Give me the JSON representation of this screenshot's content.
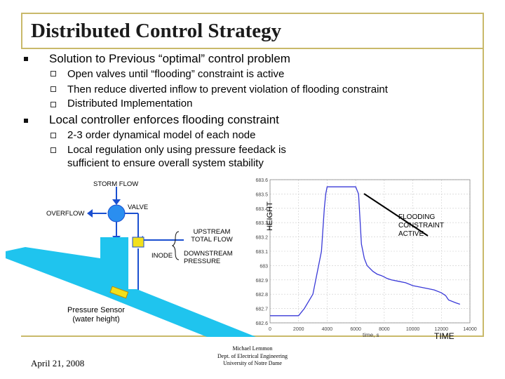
{
  "slide": {
    "title": "Distributed Control Strategy",
    "bullets": [
      {
        "text": "Solution to Previous “optimal” control problem",
        "sub": [
          "Open valves until “flooding” constraint is active",
          "Then reduce diverted inflow to prevent violation of flooding constraint",
          "Distributed Implementation"
        ]
      },
      {
        "text": "Local controller enforces flooding constraint",
        "sub": [
          "2-3 order dynamical model of each node",
          "Local regulation only using pressure feedack is sufficient to ensure overall system stability"
        ]
      }
    ]
  },
  "diagram": {
    "storm_flow": "STORM FLOW",
    "valve": "VALVE",
    "overflow": "OVERFLOW",
    "upstream": "UPSTREAM TOTAL FLOW",
    "inode": "INODE",
    "downstream": "DOWNSTREAM PRESSURE",
    "sensor": "Pressure Sensor (water height)",
    "colors": {
      "water": "#1fc4ee",
      "valve": "#2a8ef0",
      "node": "#f2e01c",
      "pipe": "#1a4fd0"
    }
  },
  "chart_data": {
    "type": "line",
    "xlabel": "time, s",
    "ylabel": "HEIGHT",
    "x_axis_caption": "TIME",
    "annotation": "FLOODING CONSTRAINT ACTIVE",
    "xlim": [
      0,
      14000
    ],
    "ylim": [
      682.6,
      683.6
    ],
    "xticks": [
      "0",
      "2000",
      "4000",
      "6000",
      "8000",
      "10000",
      "12000",
      "14000"
    ],
    "yticks": [
      "682.6",
      "682.7",
      "682.8",
      "682.9",
      "683",
      "683.1",
      "683.2",
      "683.3",
      "683.4",
      "683.5",
      "683.6"
    ],
    "grid": true,
    "color": "#3a3ad8",
    "series": [
      {
        "x": [
          0,
          2000,
          2400,
          3000,
          3600,
          3800,
          3900,
          4000,
          4200,
          4500,
          5000,
          5500,
          6000,
          6200,
          6400,
          6600,
          6800,
          7000,
          7200,
          7500,
          7800,
          8000,
          8200,
          8500,
          9000,
          9500,
          10000,
          10500,
          11000,
          11500,
          12000,
          12300,
          12500,
          13000,
          13300
        ],
        "y": [
          682.65,
          682.65,
          682.7,
          682.8,
          683.1,
          683.4,
          683.5,
          683.55,
          683.55,
          683.55,
          683.55,
          683.55,
          683.55,
          683.5,
          683.15,
          683.05,
          683.0,
          682.98,
          682.96,
          682.94,
          682.93,
          682.92,
          682.91,
          682.9,
          682.89,
          682.88,
          682.86,
          682.85,
          682.84,
          682.83,
          682.81,
          682.79,
          682.76,
          682.74,
          682.73
        ]
      }
    ]
  },
  "footer": {
    "date": "April 21, 2008",
    "author": "Michael Lemmon",
    "dept": "Dept. of Electrical Engineering",
    "univ": "University of Notre Dame"
  }
}
